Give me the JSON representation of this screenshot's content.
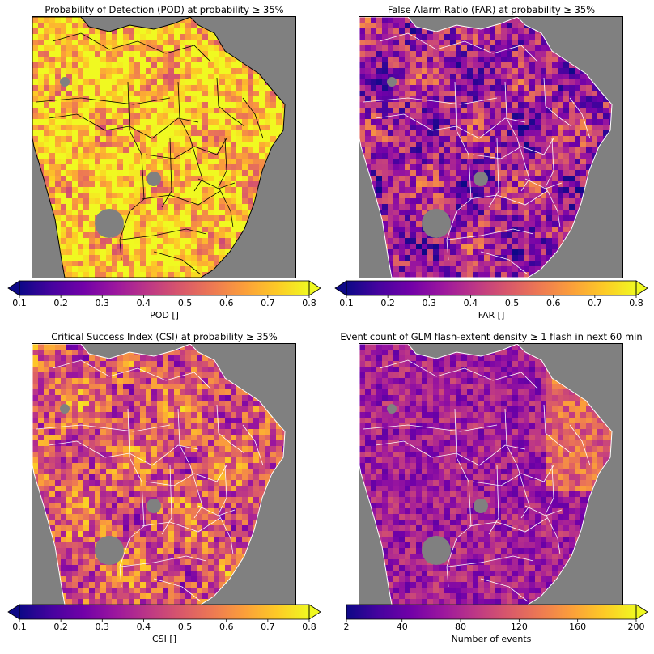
{
  "colormap": {
    "name": "plasma",
    "stops": [
      "#0d0887",
      "#46039f",
      "#7201a8",
      "#9c179e",
      "#bd3786",
      "#d8576b",
      "#ed7953",
      "#fb9f3a",
      "#fdca26",
      "#f0f921"
    ]
  },
  "background_color": "#808080",
  "chart_data": [
    {
      "type": "heatmap",
      "title": "Probability of Detection (POD) at probability ≥ 35%",
      "colorbar_label": "POD []",
      "vmin": 0.1,
      "vmax": 0.8,
      "extend": "both",
      "ticks": [
        "0.1",
        "0.2",
        "0.3",
        "0.4",
        "0.5",
        "0.6",
        "0.7",
        "0.8"
      ],
      "tick_values": [
        0.1,
        0.2,
        0.3,
        0.4,
        0.5,
        0.6,
        0.7,
        0.8
      ],
      "dominant_value": 0.72,
      "boundary_color": "#000000"
    },
    {
      "type": "heatmap",
      "title": "False Alarm Ratio (FAR) at probability ≥ 35%",
      "colorbar_label": "FAR []",
      "vmin": 0.1,
      "vmax": 0.8,
      "extend": "both",
      "ticks": [
        "0.1",
        "0.2",
        "0.3",
        "0.4",
        "0.5",
        "0.6",
        "0.7",
        "0.8"
      ],
      "tick_values": [
        0.1,
        0.2,
        0.3,
        0.4,
        0.5,
        0.6,
        0.7,
        0.8
      ],
      "dominant_value": 0.35,
      "boundary_color": "#ffffff"
    },
    {
      "type": "heatmap",
      "title": "Critical Success Index (CSI) at probability ≥ 35%",
      "colorbar_label": "CSI []",
      "vmin": 0.1,
      "vmax": 0.8,
      "extend": "both",
      "ticks": [
        "0.1",
        "0.2",
        "0.3",
        "0.4",
        "0.5",
        "0.6",
        "0.7",
        "0.8"
      ],
      "tick_values": [
        0.1,
        0.2,
        0.3,
        0.4,
        0.5,
        0.6,
        0.7,
        0.8
      ],
      "dominant_value": 0.5,
      "boundary_color": "#ffffff"
    },
    {
      "type": "heatmap",
      "title": "Event count of GLM flash-extent density ≥ 1 flash in next 60 min",
      "colorbar_label": "Number of events",
      "vmin": 2,
      "vmax": 200,
      "extend": "max",
      "ticks": [
        "2",
        "40",
        "80",
        "120",
        "160",
        "200"
      ],
      "tick_values": [
        2,
        40,
        80,
        120,
        160,
        200
      ],
      "dominant_value": 55,
      "boundary_color": "#ffffff"
    }
  ]
}
